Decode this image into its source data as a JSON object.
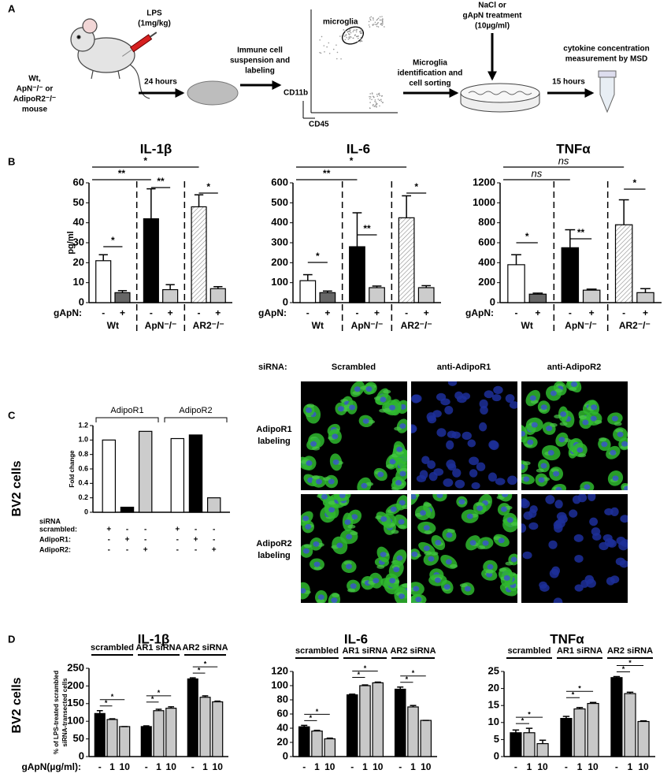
{
  "panel_a": {
    "label": "A",
    "lps": [
      "LPS",
      "(1mg/kg)"
    ],
    "mouse": [
      "Wt,",
      "ApN⁻/⁻ or",
      "AdipoR2⁻/⁻",
      "mouse"
    ],
    "step1": "24 hours",
    "step2": [
      "Immune cell",
      "suspension and",
      "labeling"
    ],
    "flow": {
      "gate": "microglia",
      "y_axis": "CD11b",
      "x_axis": "CD45"
    },
    "step3": [
      "Microglia",
      "identification and",
      "cell sorting"
    ],
    "treatment": [
      "NaCl or",
      "gApN treatment",
      "(10µg/ml)"
    ],
    "step4": "15 hours",
    "readout": [
      "cytokine concentration",
      "measurement by MSD"
    ]
  },
  "panel_labels": {
    "b": "B",
    "c": "C",
    "d": "D"
  },
  "side_labels": [
    "BV2 cells",
    "BV2 cells"
  ],
  "microscopy": {
    "row_header": "siRNA:",
    "columns": [
      "Scrambled",
      "anti-AdipoR1",
      "anti-AdipoR2"
    ],
    "rows": [
      [
        "AdipoR1",
        "labeling"
      ],
      [
        "AdipoR2",
        "labeling"
      ]
    ]
  },
  "chart_data": [
    {
      "type": "bar",
      "title": "IL-1β",
      "y_label": "pg/ml",
      "categories": [
        "-",
        "+",
        "-",
        "+",
        "-",
        "+"
      ],
      "groups": [
        "Wt",
        "ApN⁻/⁻",
        "AR2⁻/⁻"
      ],
      "x_prefix": "gApN:",
      "values": [
        21,
        5,
        42,
        6.5,
        48,
        7
      ],
      "errors": [
        3,
        1,
        15,
        2.5,
        6,
        1
      ],
      "colors": [
        "#ffffff",
        "#666666",
        "#000000",
        "#cccccc",
        "#ffffff",
        "#cccccc"
      ],
      "hatch": [
        false,
        false,
        false,
        false,
        true,
        false
      ],
      "ylim": [
        0,
        60
      ],
      "yticks": [
        0,
        10,
        20,
        30,
        40,
        50,
        60
      ],
      "annotations": [
        "*",
        "**",
        "**",
        "*",
        "*"
      ]
    },
    {
      "type": "bar",
      "title": "IL-6",
      "categories": [
        "-",
        "+",
        "-",
        "+",
        "-",
        "+"
      ],
      "groups": [
        "Wt",
        "ApN⁻/⁻",
        "AR2⁻/⁻"
      ],
      "x_prefix": "gApN:",
      "values": [
        110,
        50,
        280,
        75,
        425,
        75
      ],
      "errors": [
        30,
        8,
        170,
        8,
        110,
        10
      ],
      "colors": [
        "#ffffff",
        "#666666",
        "#000000",
        "#cccccc",
        "#ffffff",
        "#cccccc"
      ],
      "hatch": [
        false,
        false,
        false,
        false,
        true,
        false
      ],
      "ylim": [
        0,
        600
      ],
      "yticks": [
        0,
        100,
        200,
        300,
        400,
        500,
        600
      ],
      "annotations": [
        "*",
        "**",
        "**",
        "*",
        "*"
      ]
    },
    {
      "type": "bar",
      "title": "TNFα",
      "categories": [
        "-",
        "+",
        "-",
        "+",
        "-",
        "+"
      ],
      "groups": [
        "Wt",
        "ApN⁻/⁻",
        "AR2⁻/⁻"
      ],
      "x_prefix": "gApN:",
      "values": [
        380,
        85,
        550,
        125,
        780,
        100
      ],
      "errors": [
        100,
        10,
        180,
        10,
        250,
        40
      ],
      "colors": [
        "#ffffff",
        "#666666",
        "#000000",
        "#cccccc",
        "#ffffff",
        "#cccccc"
      ],
      "hatch": [
        false,
        false,
        false,
        false,
        true,
        false
      ],
      "ylim": [
        0,
        1200
      ],
      "yticks": [
        0,
        200,
        400,
        600,
        800,
        1000,
        1200
      ],
      "annotations": [
        "ns",
        "ns",
        "**",
        "*",
        "*"
      ]
    },
    {
      "type": "bar",
      "y_label": "Fold change",
      "groups": [
        "AdipoR1",
        "AdipoR2"
      ],
      "values": [
        1,
        0.07,
        1.12,
        1.02,
        1.07,
        0.2
      ],
      "colors": [
        "#ffffff",
        "#000000",
        "#cccccc",
        "#ffffff",
        "#000000",
        "#cccccc"
      ],
      "ylim": [
        0,
        1.2
      ],
      "yticks": [
        0,
        0.2,
        0.4,
        0.6,
        0.8,
        {
          "value": 1,
          "label": "1.0"
        },
        1.2
      ],
      "design_header": "siRNA",
      "design": [
        {
          "name": "scrambled:",
          "marks": [
            "+",
            "-",
            "-",
            "+",
            "-",
            "-"
          ]
        },
        {
          "name": "AdipoR1:",
          "marks": [
            "-",
            "+",
            "-",
            "-",
            "+",
            "-"
          ]
        },
        {
          "name": "AdipoR2:",
          "marks": [
            "-",
            "-",
            "+",
            "-",
            "-",
            "+"
          ]
        }
      ]
    },
    {
      "type": "bar",
      "title": "IL-1β",
      "y_label": [
        "% of LPS-treated scrambled",
        "siRNA-transected cells"
      ],
      "groups": [
        "scrambled",
        "AR1 siRNA",
        "AR2 siRNA"
      ],
      "categories": [
        "-",
        "1",
        "10",
        "-",
        "1",
        "10",
        "-",
        "1",
        "10"
      ],
      "x_prefix": "gApN(µg/ml):",
      "values": [
        122,
        105,
        85,
        85,
        130,
        137,
        220,
        168,
        155
      ],
      "errors": [
        8,
        2,
        0,
        2,
        4,
        4,
        3,
        4,
        2
      ],
      "colors": [
        "#000000",
        "#c8c8c8",
        "#c8c8c8",
        "#000000",
        "#c8c8c8",
        "#c8c8c8",
        "#000000",
        "#c8c8c8",
        "#c8c8c8"
      ],
      "ylim": [
        0,
        250
      ],
      "yticks": [
        0,
        50,
        100,
        150,
        200,
        250
      ],
      "annotations": [
        "*",
        "*",
        "*",
        "*",
        "*",
        "*"
      ]
    },
    {
      "type": "bar",
      "title": "IL-6",
      "groups": [
        "scrambled",
        "AR1 siRNA",
        "AR2 siRNA"
      ],
      "categories": [
        "-",
        "1",
        "10",
        "-",
        "1",
        "10",
        "-",
        "1",
        "10"
      ],
      "values": [
        42,
        36,
        25,
        87,
        100,
        104,
        95,
        70,
        51
      ],
      "errors": [
        2,
        1,
        1,
        1,
        1,
        1,
        3,
        2,
        0
      ],
      "colors": [
        "#000000",
        "#c8c8c8",
        "#c8c8c8",
        "#000000",
        "#c8c8c8",
        "#c8c8c8",
        "#000000",
        "#c8c8c8",
        "#c8c8c8"
      ],
      "ylim": [
        0,
        120
      ],
      "yticks": [
        0,
        20,
        40,
        60,
        80,
        100,
        120
      ],
      "annotations": [
        "*",
        "*",
        "*",
        "*",
        "*",
        "*"
      ]
    },
    {
      "type": "bar",
      "title": "TNFα",
      "groups": [
        "scrambled",
        "AR1 siRNA",
        "AR2 siRNA"
      ],
      "categories": [
        "-",
        "1",
        "10",
        "-",
        "1",
        "10",
        "-",
        "1",
        "10"
      ],
      "values": [
        7,
        7,
        3.8,
        11.2,
        14,
        15.6,
        23.2,
        18.5,
        10.3
      ],
      "errors": [
        0.8,
        1.3,
        1,
        0.6,
        0.4,
        0.3,
        0.3,
        0.4,
        0.2
      ],
      "colors": [
        "#000000",
        "#c8c8c8",
        "#c8c8c8",
        "#000000",
        "#c8c8c8",
        "#c8c8c8",
        "#000000",
        "#c8c8c8",
        "#c8c8c8"
      ],
      "ylim": [
        0,
        25
      ],
      "yticks": [
        0,
        5,
        10,
        15,
        20,
        25
      ],
      "annotations": [
        "*",
        "*",
        "*",
        "*",
        "*",
        "*"
      ]
    }
  ]
}
